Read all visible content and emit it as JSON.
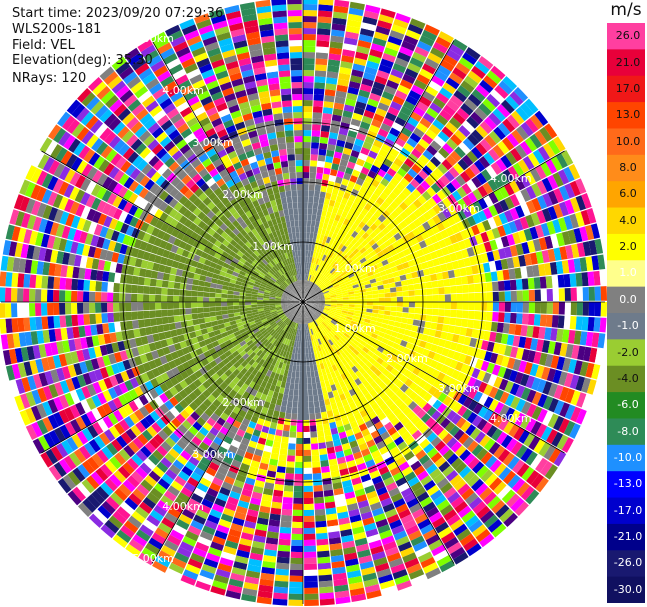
{
  "header": {
    "start_time": "Start time: 2023/09/20 07:29:36",
    "site": "WLS200s-181",
    "field": "Field: VEL",
    "elevation": "Elevation(deg): 35.30",
    "nrays": "NRays: 120"
  },
  "colorbar": {
    "unit": "m/s",
    "labels": [
      "26.0",
      "21.0",
      "17.0",
      "13.0",
      "10.0",
      "8.0",
      "6.0",
      "4.0",
      "2.0",
      "1.0",
      "0.0",
      "-1.0",
      "-2.0",
      "-4.0",
      "-6.0",
      "-8.0",
      "-10.0",
      "-13.0",
      "-17.0",
      "-21.0",
      "-26.0",
      "-30.0"
    ],
    "colors": [
      "#ff3fa0",
      "#e8003a",
      "#f01818",
      "#ff4500",
      "#ff6a1a",
      "#ff8c1a",
      "#ffa500",
      "#ffd700",
      "#ffff00",
      "#ffff8c",
      "#808080",
      "#6e7b8b",
      "#9acd32",
      "#6b8e23",
      "#228b22",
      "#2e8b57",
      "#1e90ff",
      "#0000ff",
      "#0000cd",
      "#00008b",
      "#191970",
      "#101060"
    ]
  },
  "chart_data": {
    "type": "heatmap",
    "subtype": "radar-ppi",
    "field": "VEL",
    "nrays": 120,
    "ring_labels": [
      "1.00km",
      "2.00km",
      "3.00km",
      "4.00km",
      "5.00km"
    ],
    "range_labels": [
      {
        "az": 330,
        "text": "5.00km"
      },
      {
        "az": 330,
        "text": "4.00km"
      },
      {
        "az": 330,
        "text": "3.00km"
      },
      {
        "az": 330,
        "text": "2.00km"
      },
      {
        "az": 330,
        "text": "1.00km"
      },
      {
        "az": 60,
        "text": "4.00km"
      },
      {
        "az": 60,
        "text": "3.00km"
      },
      {
        "az": 60,
        "text": "1.00km"
      },
      {
        "az": 120,
        "text": "2.00km"
      },
      {
        "az": 120,
        "text": "3.00km"
      },
      {
        "az": 120,
        "text": "4.00km"
      },
      {
        "az": 120,
        "text": "1.00km"
      },
      {
        "az": 210,
        "text": "2.00km"
      },
      {
        "az": 210,
        "text": "3.00km"
      },
      {
        "az": 210,
        "text": "4.00km"
      },
      {
        "az": 210,
        "text": "5.00km"
      }
    ],
    "colorbar_range": [
      -30,
      26
    ],
    "unit": "m/s"
  }
}
